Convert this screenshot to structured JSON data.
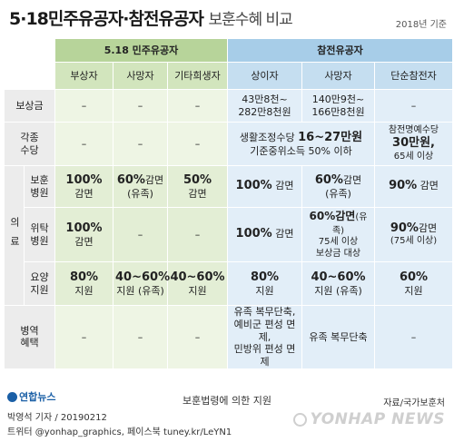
{
  "title": {
    "main": "5·18민주유공자·참전유공자",
    "sub": "보훈수혜 비교"
  },
  "basis": "2018년 기준",
  "headers": {
    "group_518": "5.18 민주유공자",
    "group_war": "참전유공자",
    "sub": [
      "부상자",
      "사망자",
      "기타희생자",
      "상이자",
      "사망자",
      "단순참전자"
    ]
  },
  "rows": {
    "compensation": {
      "label": "보상금",
      "cells": [
        "–",
        "–",
        "–",
        "43만8천~\n282만8천원",
        "140만9천~\n166만8천원",
        "–"
      ]
    },
    "allowance": {
      "label": "각종\n수당",
      "cells": [
        "–",
        "–",
        "–"
      ],
      "merged_line1": "생활조정수당 ",
      "merged_big": "16~27만원",
      "merged_line2": "기준중위소득 50% 이하",
      "last_line1": "참전명예수당",
      "last_big": "30만원,",
      "last_line2": "65세 이상"
    },
    "medical_label": "의료",
    "veterans_hospital": {
      "label": "보훈\n병원",
      "c1_big": "100%",
      "c1_small": "감면",
      "c2_big": "60%",
      "c2_small": "감면\n(유족)",
      "c3_big": "50%",
      "c3_small": "감면",
      "c4_big": "100%",
      "c4_small": "감면",
      "c5_big": "60%",
      "c5_small": "감면\n(유족)",
      "c6_big": "90%",
      "c6_small": "감면"
    },
    "consigned_hospital": {
      "label": "위탁\n병원",
      "c1_big": "100%",
      "c1_small": "감면",
      "c2": "–",
      "c3": "–",
      "c4_big": "100%",
      "c4_small": "감면",
      "c5_line1": "60%감면",
      "c5_line1b": "(유족)",
      "c5_line2": "75세 이상",
      "c5_line3": "보상금 대상",
      "c6_big": "90%",
      "c6_small": "감면",
      "c6_line2": "(75세 이상)"
    },
    "nursing_support": {
      "label": "요양\n지원",
      "c1_big": "80%",
      "c1_small": "지원",
      "c2_big": "40~60%",
      "c2_small": "지원 (유족)",
      "c3_big": "40~60%",
      "c3_small": "지원",
      "c4_big": "80%",
      "c4_small": "지원",
      "c5_big": "40~60%",
      "c5_small": "지원 (유족)",
      "c6_big": "60%",
      "c6_small": "지원"
    },
    "military": {
      "label": "병역\n혜택",
      "cells": [
        "–",
        "–",
        "–",
        "유족 복무단축,\n예비군 편성 면제,\n민방위 편성 면제",
        "유족 복무단축",
        "–"
      ]
    }
  },
  "footer": {
    "note": "보훈법령에 의한 지원",
    "source": "자료/국가보훈처",
    "logo_text": "연합뉴스",
    "credit1": "박영석 기자 / 20190212",
    "credit2": "트위터 @yonhap_graphics, 페이스북 tuney.kr/LeYN1",
    "watermark": "YONHAP NEWS"
  },
  "colors": {
    "green_header": "#b7d49a",
    "blue_header": "#a7cde8",
    "brand": "#1a5fa6"
  }
}
